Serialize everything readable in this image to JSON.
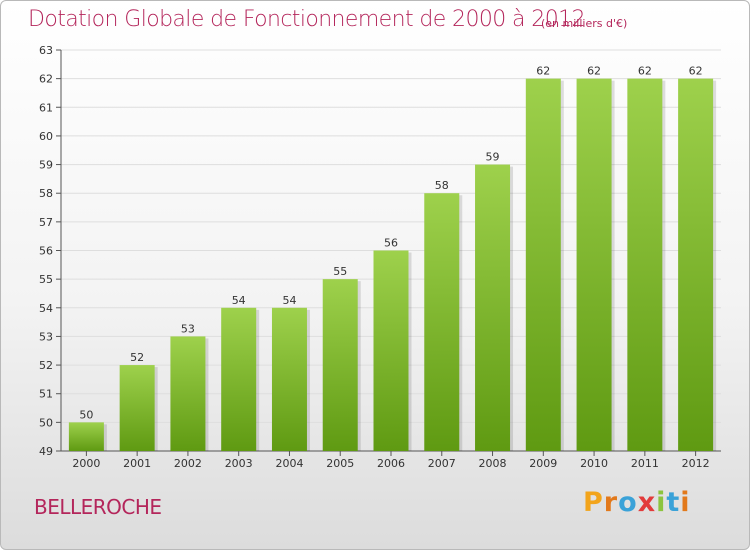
{
  "header": {
    "title": "Dotation Globale de Fonctionnement de 2000 à 2012",
    "unit": "(en milliers d'€)"
  },
  "footer": {
    "commune": "BELLEROCHE",
    "logo": "Proxiti"
  },
  "colors": {
    "title": "#b4265b",
    "bar_top": "#9ed14c",
    "bar_bottom": "#5f9a12",
    "logo_letters": [
      "#f2a41b",
      "#e2791b",
      "#3aa2d8",
      "#e23b3b",
      "#8cc43e",
      "#3aa2d8",
      "#e2791b"
    ]
  },
  "chart_data": {
    "type": "bar",
    "categories": [
      "2000",
      "2001",
      "2002",
      "2003",
      "2004",
      "2005",
      "2006",
      "2007",
      "2008",
      "2009",
      "2010",
      "2011",
      "2012"
    ],
    "values": [
      50,
      52,
      53,
      54,
      54,
      55,
      56,
      58,
      59,
      62,
      62,
      62,
      62
    ],
    "ylim": [
      49,
      63
    ],
    "yticks": [
      49,
      50,
      51,
      52,
      53,
      54,
      55,
      56,
      57,
      58,
      59,
      60,
      61,
      62,
      63
    ],
    "grid": true
  }
}
